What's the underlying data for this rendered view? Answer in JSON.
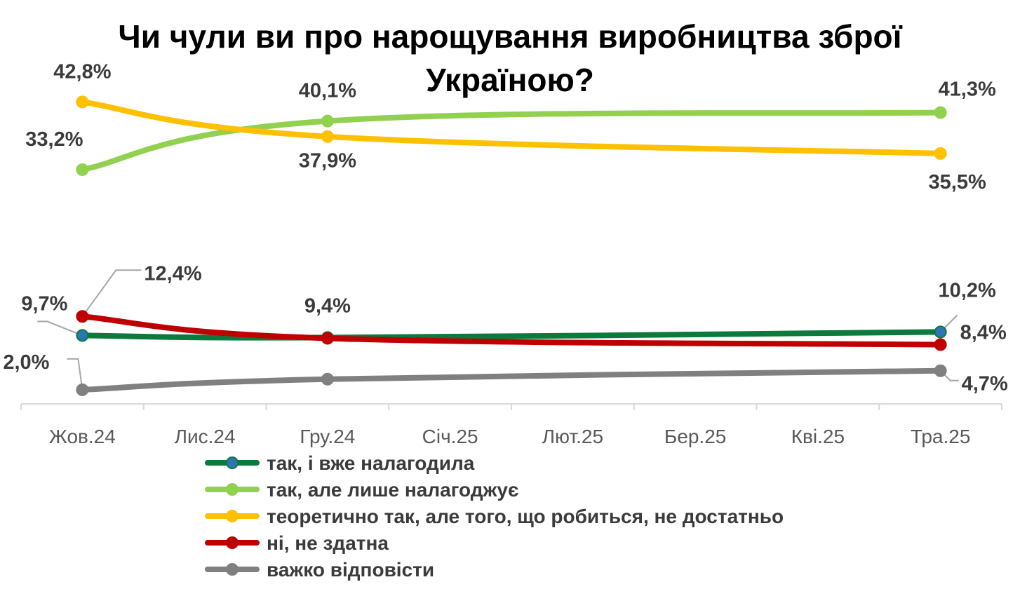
{
  "chart_data": {
    "type": "line",
    "title_lines": [
      "Чи чули ви про нарощування виробництва зброї",
      "Україною?"
    ],
    "categories": [
      "Жов.24",
      "Лис.24",
      "Гру.24",
      "Січ.25",
      "Лют.25",
      "Бер.25",
      "Кві.25",
      "Тра.25"
    ],
    "series": [
      {
        "name": "так, і вже налагодила",
        "color": "#0b7a3c",
        "marker_color": "#2e75b6",
        "points": [
          {
            "x": "Жов.24",
            "y": 9.7,
            "label": "9,7%"
          },
          {
            "x": "Гру.24",
            "y": 9.4,
            "label": "9,4%"
          },
          {
            "x": "Тра.25",
            "y": 10.2,
            "label": "10,2%"
          }
        ]
      },
      {
        "name": "так, але лише налагоджує",
        "color": "#92d050",
        "marker_color": "#92d050",
        "points": [
          {
            "x": "Жов.24",
            "y": 33.2,
            "label": "33,2%"
          },
          {
            "x": "Гру.24",
            "y": 40.1,
            "label": "40,1%"
          },
          {
            "x": "Тра.25",
            "y": 41.3,
            "label": "41,3%"
          }
        ]
      },
      {
        "name": "теоретично так, але того, що робиться, не достатньо",
        "color": "#ffc000",
        "marker_color": "#ffc000",
        "points": [
          {
            "x": "Жов.24",
            "y": 42.8,
            "label": "42,8%"
          },
          {
            "x": "Гру.24",
            "y": 37.9,
            "label": "37,9%"
          },
          {
            "x": "Тра.25",
            "y": 35.5,
            "label": "35,5%"
          }
        ]
      },
      {
        "name": "ні, не здатна",
        "color": "#c00000",
        "marker_color": "#c00000",
        "points": [
          {
            "x": "Жов.24",
            "y": 12.4,
            "label": "12,4%"
          },
          {
            "x": "Гру.24",
            "y": 9.3,
            "label": ""
          },
          {
            "x": "Тра.25",
            "y": 8.4,
            "label": "8,4%"
          }
        ]
      },
      {
        "name": "важко відповісти",
        "color": "#808080",
        "marker_color": "#808080",
        "points": [
          {
            "x": "Жов.24",
            "y": 2.0,
            "label": "2,0%"
          },
          {
            "x": "Гру.24",
            "y": 3.5,
            "label": ""
          },
          {
            "x": "Тра.25",
            "y": 4.7,
            "label": "4,7%"
          }
        ]
      }
    ],
    "ylim": [
      0,
      48
    ],
    "grid": false,
    "legend_position": "bottom"
  }
}
